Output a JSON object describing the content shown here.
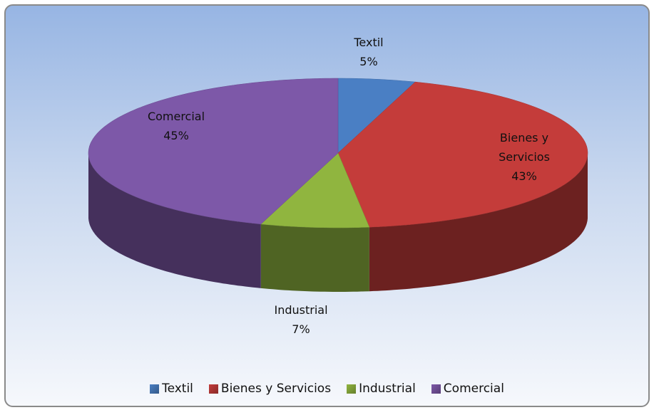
{
  "chart_data": {
    "type": "pie",
    "categories": [
      "Textil",
      "Bienes y Servicios",
      "Industrial",
      "Comercial"
    ],
    "values": [
      5,
      43,
      7,
      45
    ],
    "value_labels": [
      "5%",
      "43%",
      "7%",
      "45%"
    ],
    "colors": [
      "#4a7fc4",
      "#c43c3a",
      "#90b53f",
      "#7d58a8"
    ],
    "legend": "bottom"
  }
}
